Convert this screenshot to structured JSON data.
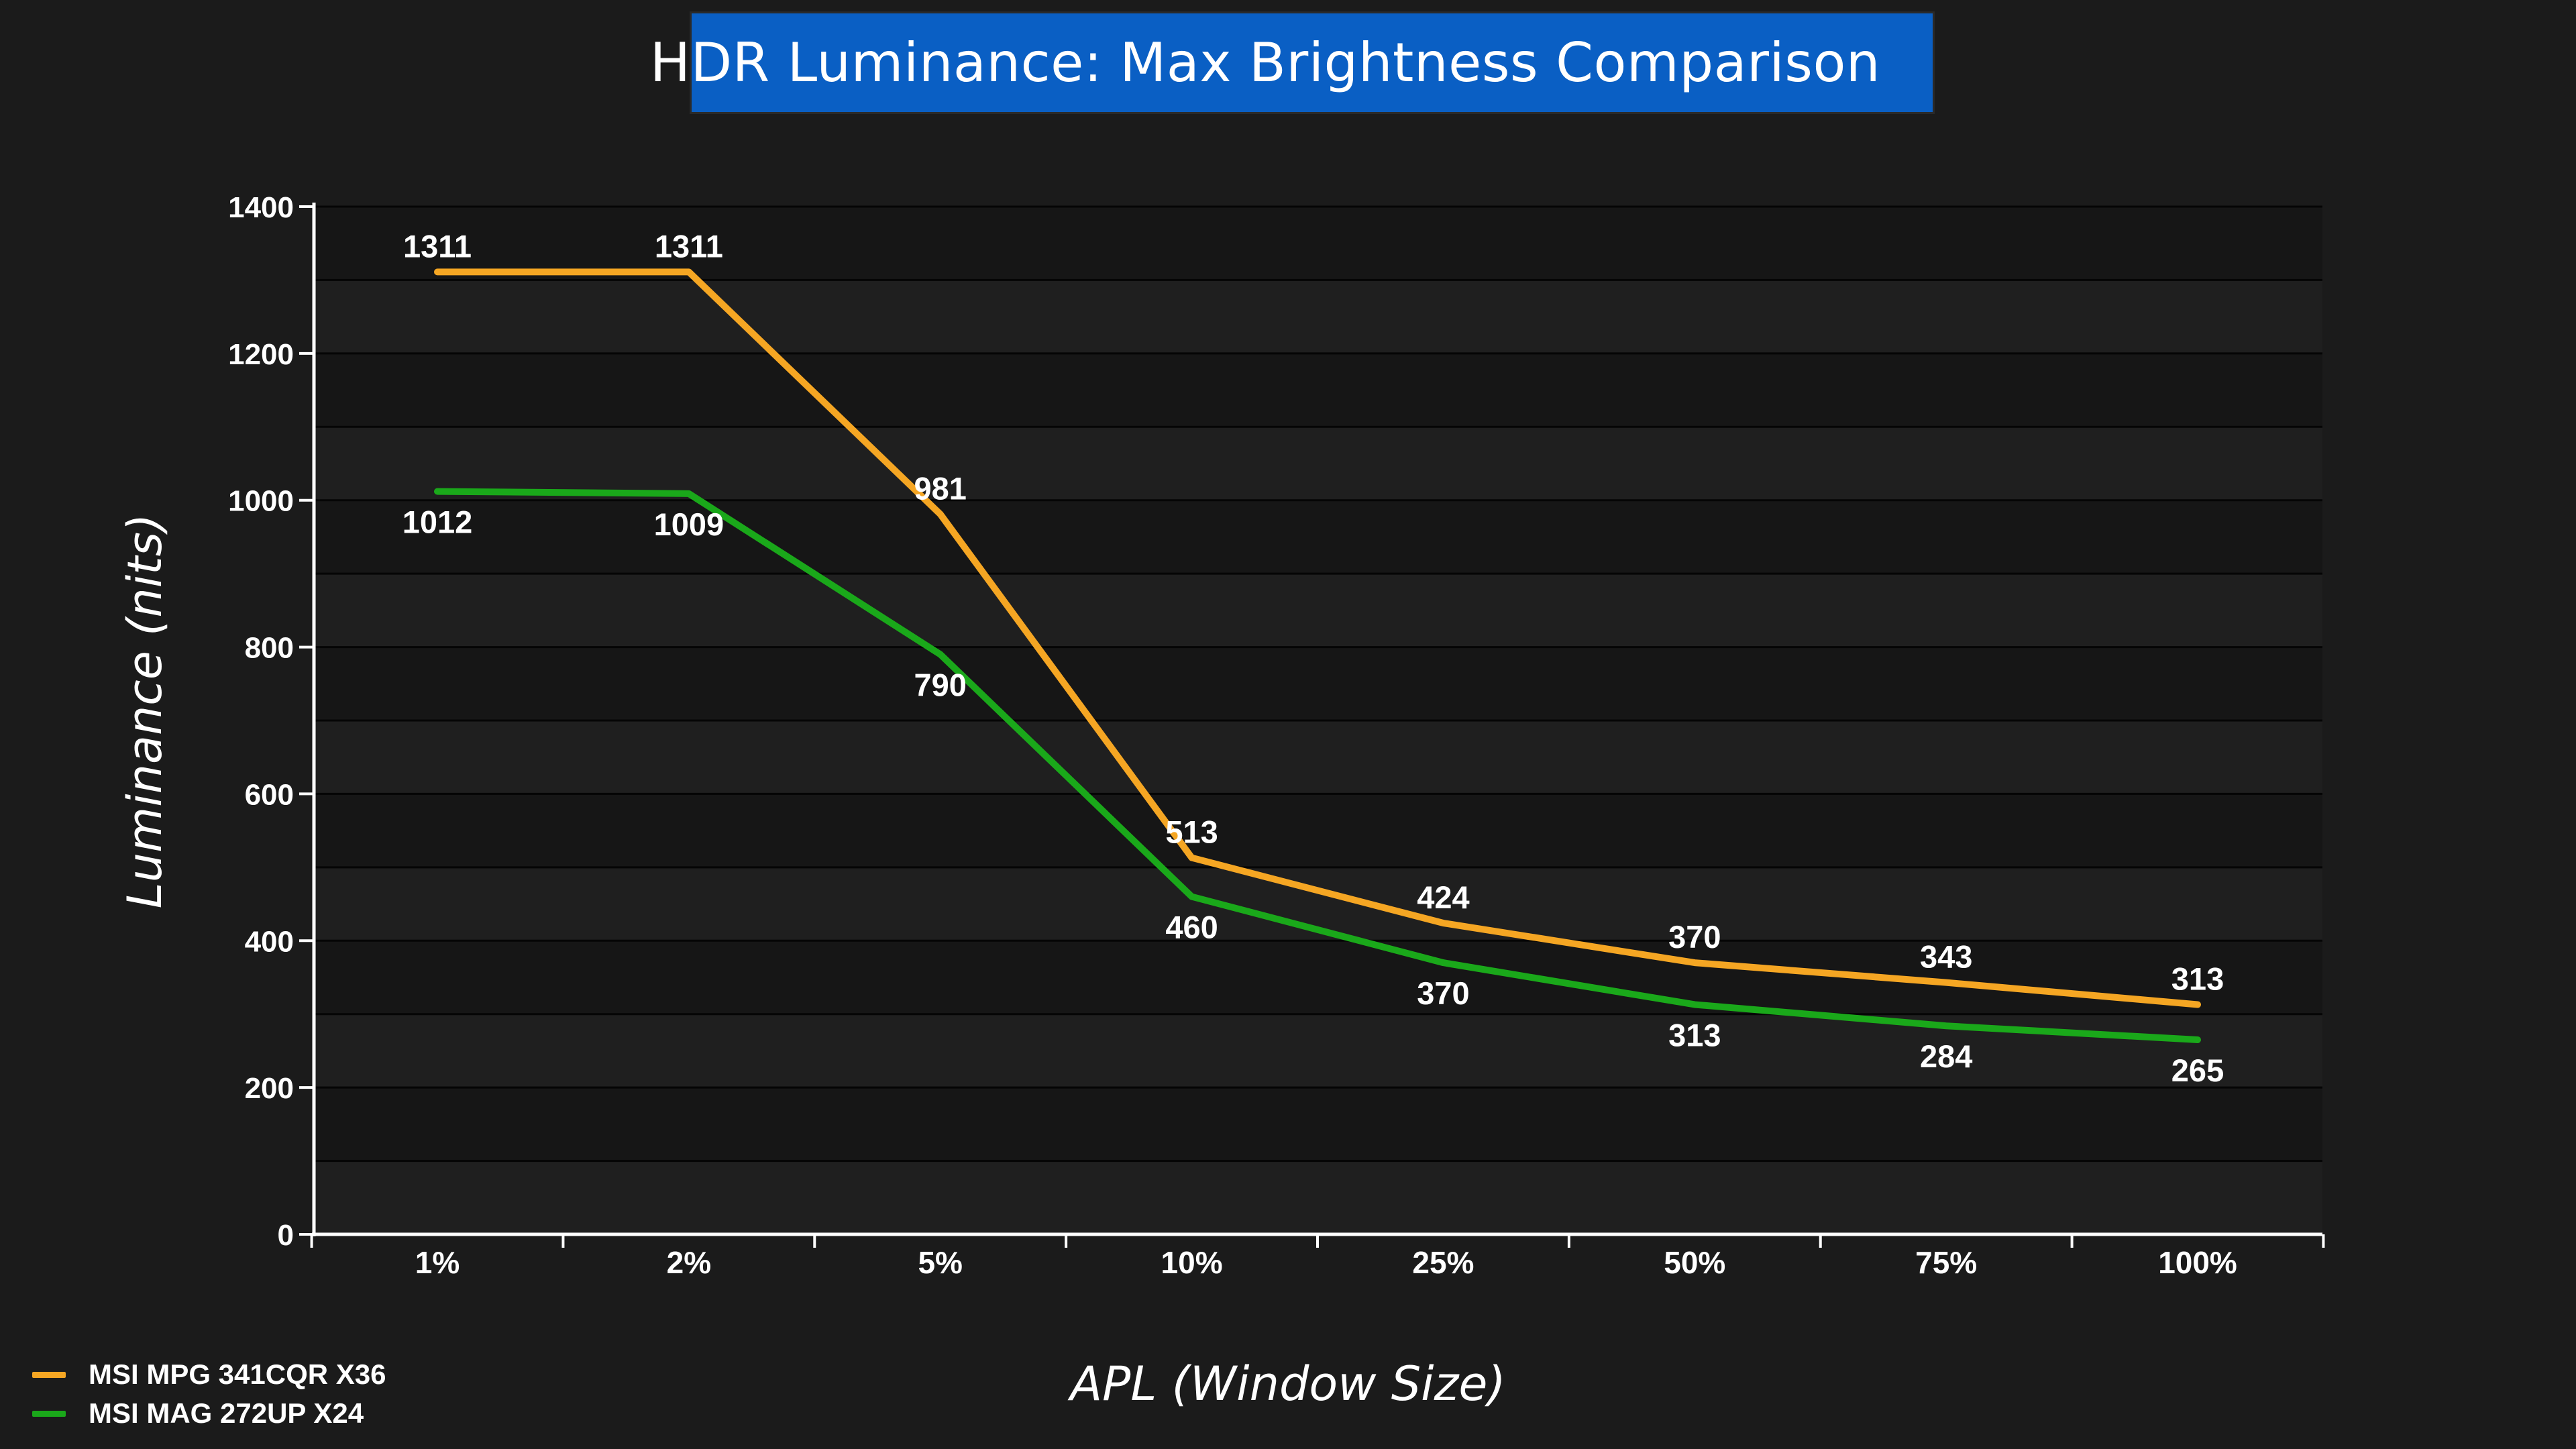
{
  "chart_data": {
    "type": "line",
    "title": "HDR Luminance: Max Brightness Comparison",
    "xlabel": "APL (Window Size)",
    "ylabel": "Luminance (nits)",
    "categories": [
      "1%",
      "2%",
      "5%",
      "10%",
      "25%",
      "50%",
      "75%",
      "100%"
    ],
    "ylim": [
      0,
      1400
    ],
    "yticks": [
      0,
      200,
      400,
      600,
      800,
      1000,
      1200,
      1400
    ],
    "grid": true,
    "legend_position": "bottom-left",
    "series": [
      {
        "name": "MSI MPG 341CQR X36",
        "color": "#f5a623",
        "values": [
          1311,
          1311,
          981,
          513,
          424,
          370,
          343,
          313
        ]
      },
      {
        "name": "MSI MAG 272UP X24",
        "color": "#1aa81a",
        "values": [
          1012,
          1009,
          790,
          460,
          370,
          313,
          284,
          265
        ]
      }
    ]
  }
}
